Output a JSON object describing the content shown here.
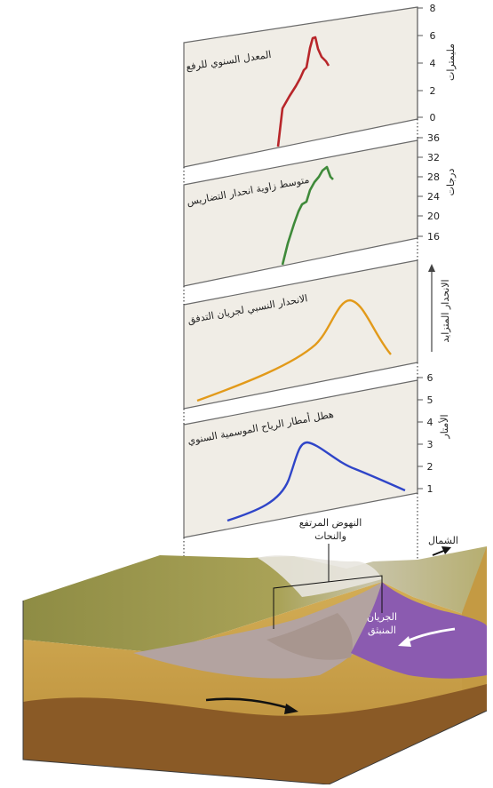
{
  "panels": [
    {
      "id": "uplift",
      "title": "المعدل السنوي للرفع",
      "unit": "مليمترات",
      "ticks": [
        "8",
        "6",
        "4",
        "2",
        "0"
      ],
      "color": "#b8262a"
    },
    {
      "id": "relief",
      "title": "متوسط زاوية انحدار التضاريس",
      "unit": "درجات",
      "ticks": [
        "36",
        "32",
        "28",
        "24",
        "20",
        "16"
      ],
      "color": "#3f8a3a"
    },
    {
      "id": "gradient",
      "title": "الانحدار النسبي لجريان التدفق",
      "unit": "الانحدار المتزايد",
      "ticks": [],
      "color": "#e29a1a"
    },
    {
      "id": "rainfall",
      "title": "هطل أمطار الرياح الموسمية السنوي",
      "unit": "الأمتار",
      "ticks": [
        "6",
        "5",
        "4",
        "3",
        "2",
        "1"
      ],
      "color": "#2f45c8"
    }
  ],
  "labels": {
    "north": "الشمال",
    "uplift_line1": "النهوض المرتفع",
    "uplift_line2": "والنحات",
    "flow_line1": "الجريان",
    "flow_line2": "المنبثق"
  },
  "colors": {
    "panel_fill": "#f0ede6",
    "land_top": "#9a9a4a",
    "side_soil": "#c9a24a",
    "purple": "#8b5bb0"
  }
}
